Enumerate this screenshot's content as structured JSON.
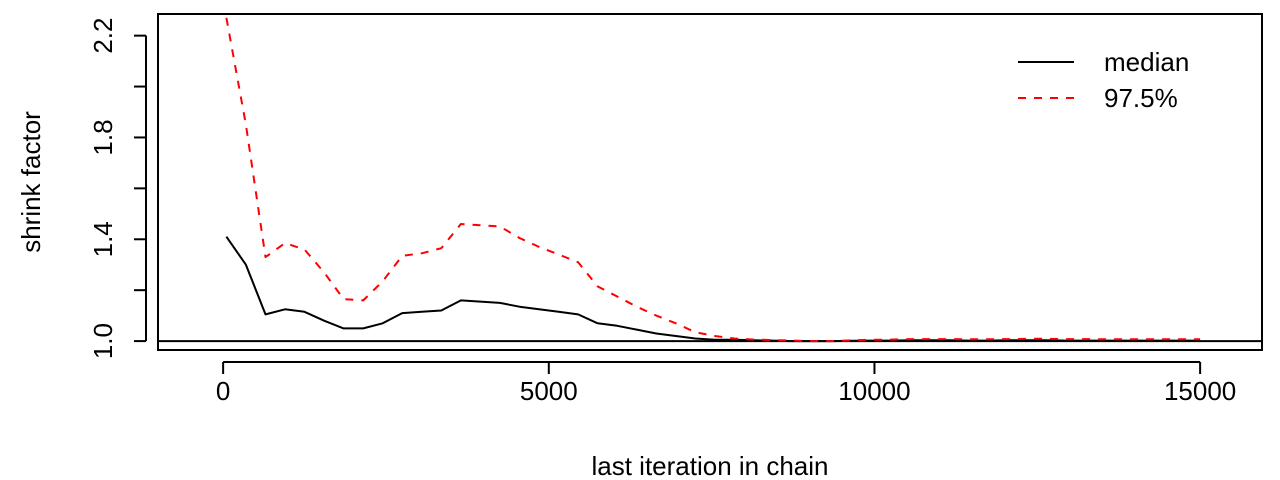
{
  "chart_data": {
    "type": "line",
    "title": "",
    "xlabel": "last iteration in chain",
    "ylabel": "shrink factor",
    "xlim": [
      -1000,
      15950
    ],
    "ylim": [
      0.965,
      2.285
    ],
    "x_ticks": [
      0,
      5000,
      10000,
      15000
    ],
    "x_tick_labels": [
      "0",
      "5000",
      "10000",
      "15000"
    ],
    "y_ticks": [
      1.0,
      1.2,
      1.4,
      1.6,
      1.8,
      2.0,
      2.2
    ],
    "y_tick_labels": [
      "1.0",
      "",
      "1.4",
      "",
      "1.8",
      "",
      "2.2"
    ],
    "grid": false,
    "legend_position": "top-right",
    "reference_line": 1.0,
    "x": [
      50,
      350,
      650,
      950,
      1250,
      1550,
      1850,
      2150,
      2450,
      2750,
      3050,
      3350,
      3650,
      3950,
      4250,
      4550,
      4850,
      5150,
      5450,
      5750,
      6050,
      6350,
      6650,
      6950,
      7250,
      7550,
      7850,
      8150,
      8450,
      8750,
      9050,
      9350,
      9650,
      9950,
      10250,
      10550,
      10850,
      11150,
      11450,
      11750,
      12050,
      12350,
      12650,
      12950,
      13250,
      13550,
      13850,
      14150,
      14450,
      14750,
      15000
    ],
    "series": [
      {
        "name": "median",
        "color": "#000000",
        "dash": "solid",
        "values": [
          1.41,
          1.3,
          1.105,
          1.125,
          1.115,
          1.08,
          1.05,
          1.05,
          1.07,
          1.11,
          1.115,
          1.12,
          1.16,
          1.155,
          1.15,
          1.135,
          1.125,
          1.115,
          1.105,
          1.07,
          1.06,
          1.045,
          1.03,
          1.02,
          1.01,
          1.005,
          1.005,
          1.003,
          1.002,
          1.0,
          1.0,
          1.0,
          1.001,
          1.002,
          1.002,
          1.003,
          1.003,
          1.003,
          1.002,
          1.002,
          1.003,
          1.003,
          1.003,
          1.002,
          1.002,
          1.002,
          1.002,
          1.002,
          1.002,
          1.002,
          1.002
        ]
      },
      {
        "name": "97.5%",
        "color": "#ff0000",
        "dash": "dashed",
        "values": [
          2.27,
          1.85,
          1.33,
          1.385,
          1.36,
          1.27,
          1.165,
          1.16,
          1.235,
          1.335,
          1.345,
          1.365,
          1.46,
          1.455,
          1.45,
          1.405,
          1.37,
          1.34,
          1.31,
          1.215,
          1.175,
          1.135,
          1.1,
          1.07,
          1.035,
          1.02,
          1.01,
          1.006,
          1.004,
          1.002,
          1.0,
          1.0,
          1.003,
          1.005,
          1.006,
          1.008,
          1.008,
          1.008,
          1.007,
          1.007,
          1.008,
          1.009,
          1.009,
          1.008,
          1.008,
          1.007,
          1.007,
          1.007,
          1.007,
          1.007,
          1.007
        ]
      }
    ]
  }
}
